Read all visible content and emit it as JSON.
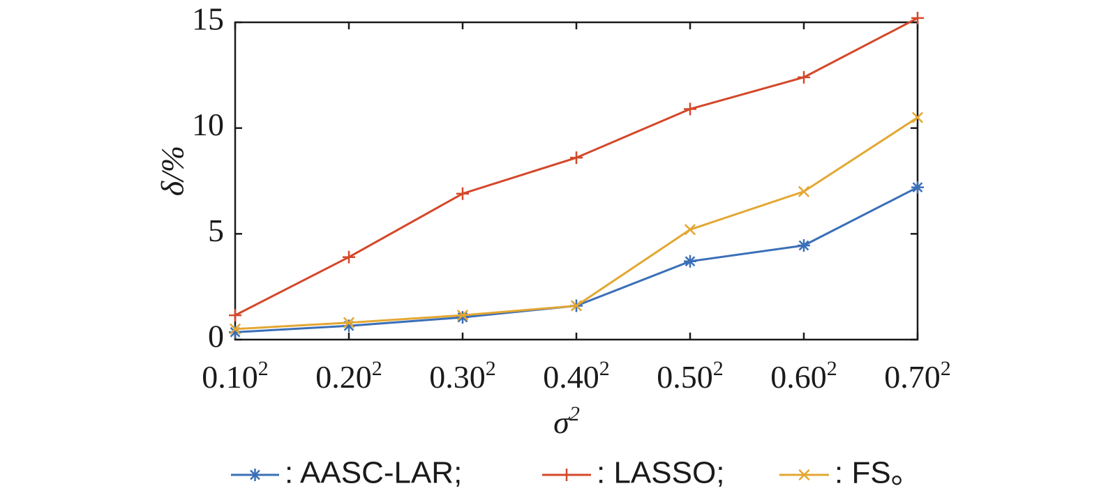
{
  "chart_data": {
    "type": "line",
    "xlabel": {
      "base": "σ",
      "sup": "2"
    },
    "ylabel": "δ/%",
    "ylim": [
      0,
      15
    ],
    "yticks": [
      0,
      5,
      10,
      15
    ],
    "grid": false,
    "legend_position": "bottom",
    "categories": [
      {
        "base": "0.10",
        "sup": "2"
      },
      {
        "base": "0.20",
        "sup": "2"
      },
      {
        "base": "0.30",
        "sup": "2"
      },
      {
        "base": "0.40",
        "sup": "2"
      },
      {
        "base": "0.50",
        "sup": "2"
      },
      {
        "base": "0.60",
        "sup": "2"
      },
      {
        "base": "0.70",
        "sup": "2"
      }
    ],
    "series": [
      {
        "name": ": AASC-LAR;",
        "color": "#3a6fb7",
        "marker": "asterisk",
        "values": [
          0.35,
          0.65,
          1.05,
          1.6,
          3.7,
          4.45,
          7.2
        ]
      },
      {
        "name": ": LASSO;",
        "color": "#d4482a",
        "marker": "plus",
        "values": [
          1.15,
          3.9,
          6.9,
          8.6,
          10.9,
          12.4,
          15.2
        ]
      },
      {
        "name": ": FS。",
        "color": "#e3a732",
        "marker": "x",
        "values": [
          0.5,
          0.8,
          1.15,
          1.6,
          5.2,
          7.0,
          10.5
        ]
      }
    ]
  }
}
